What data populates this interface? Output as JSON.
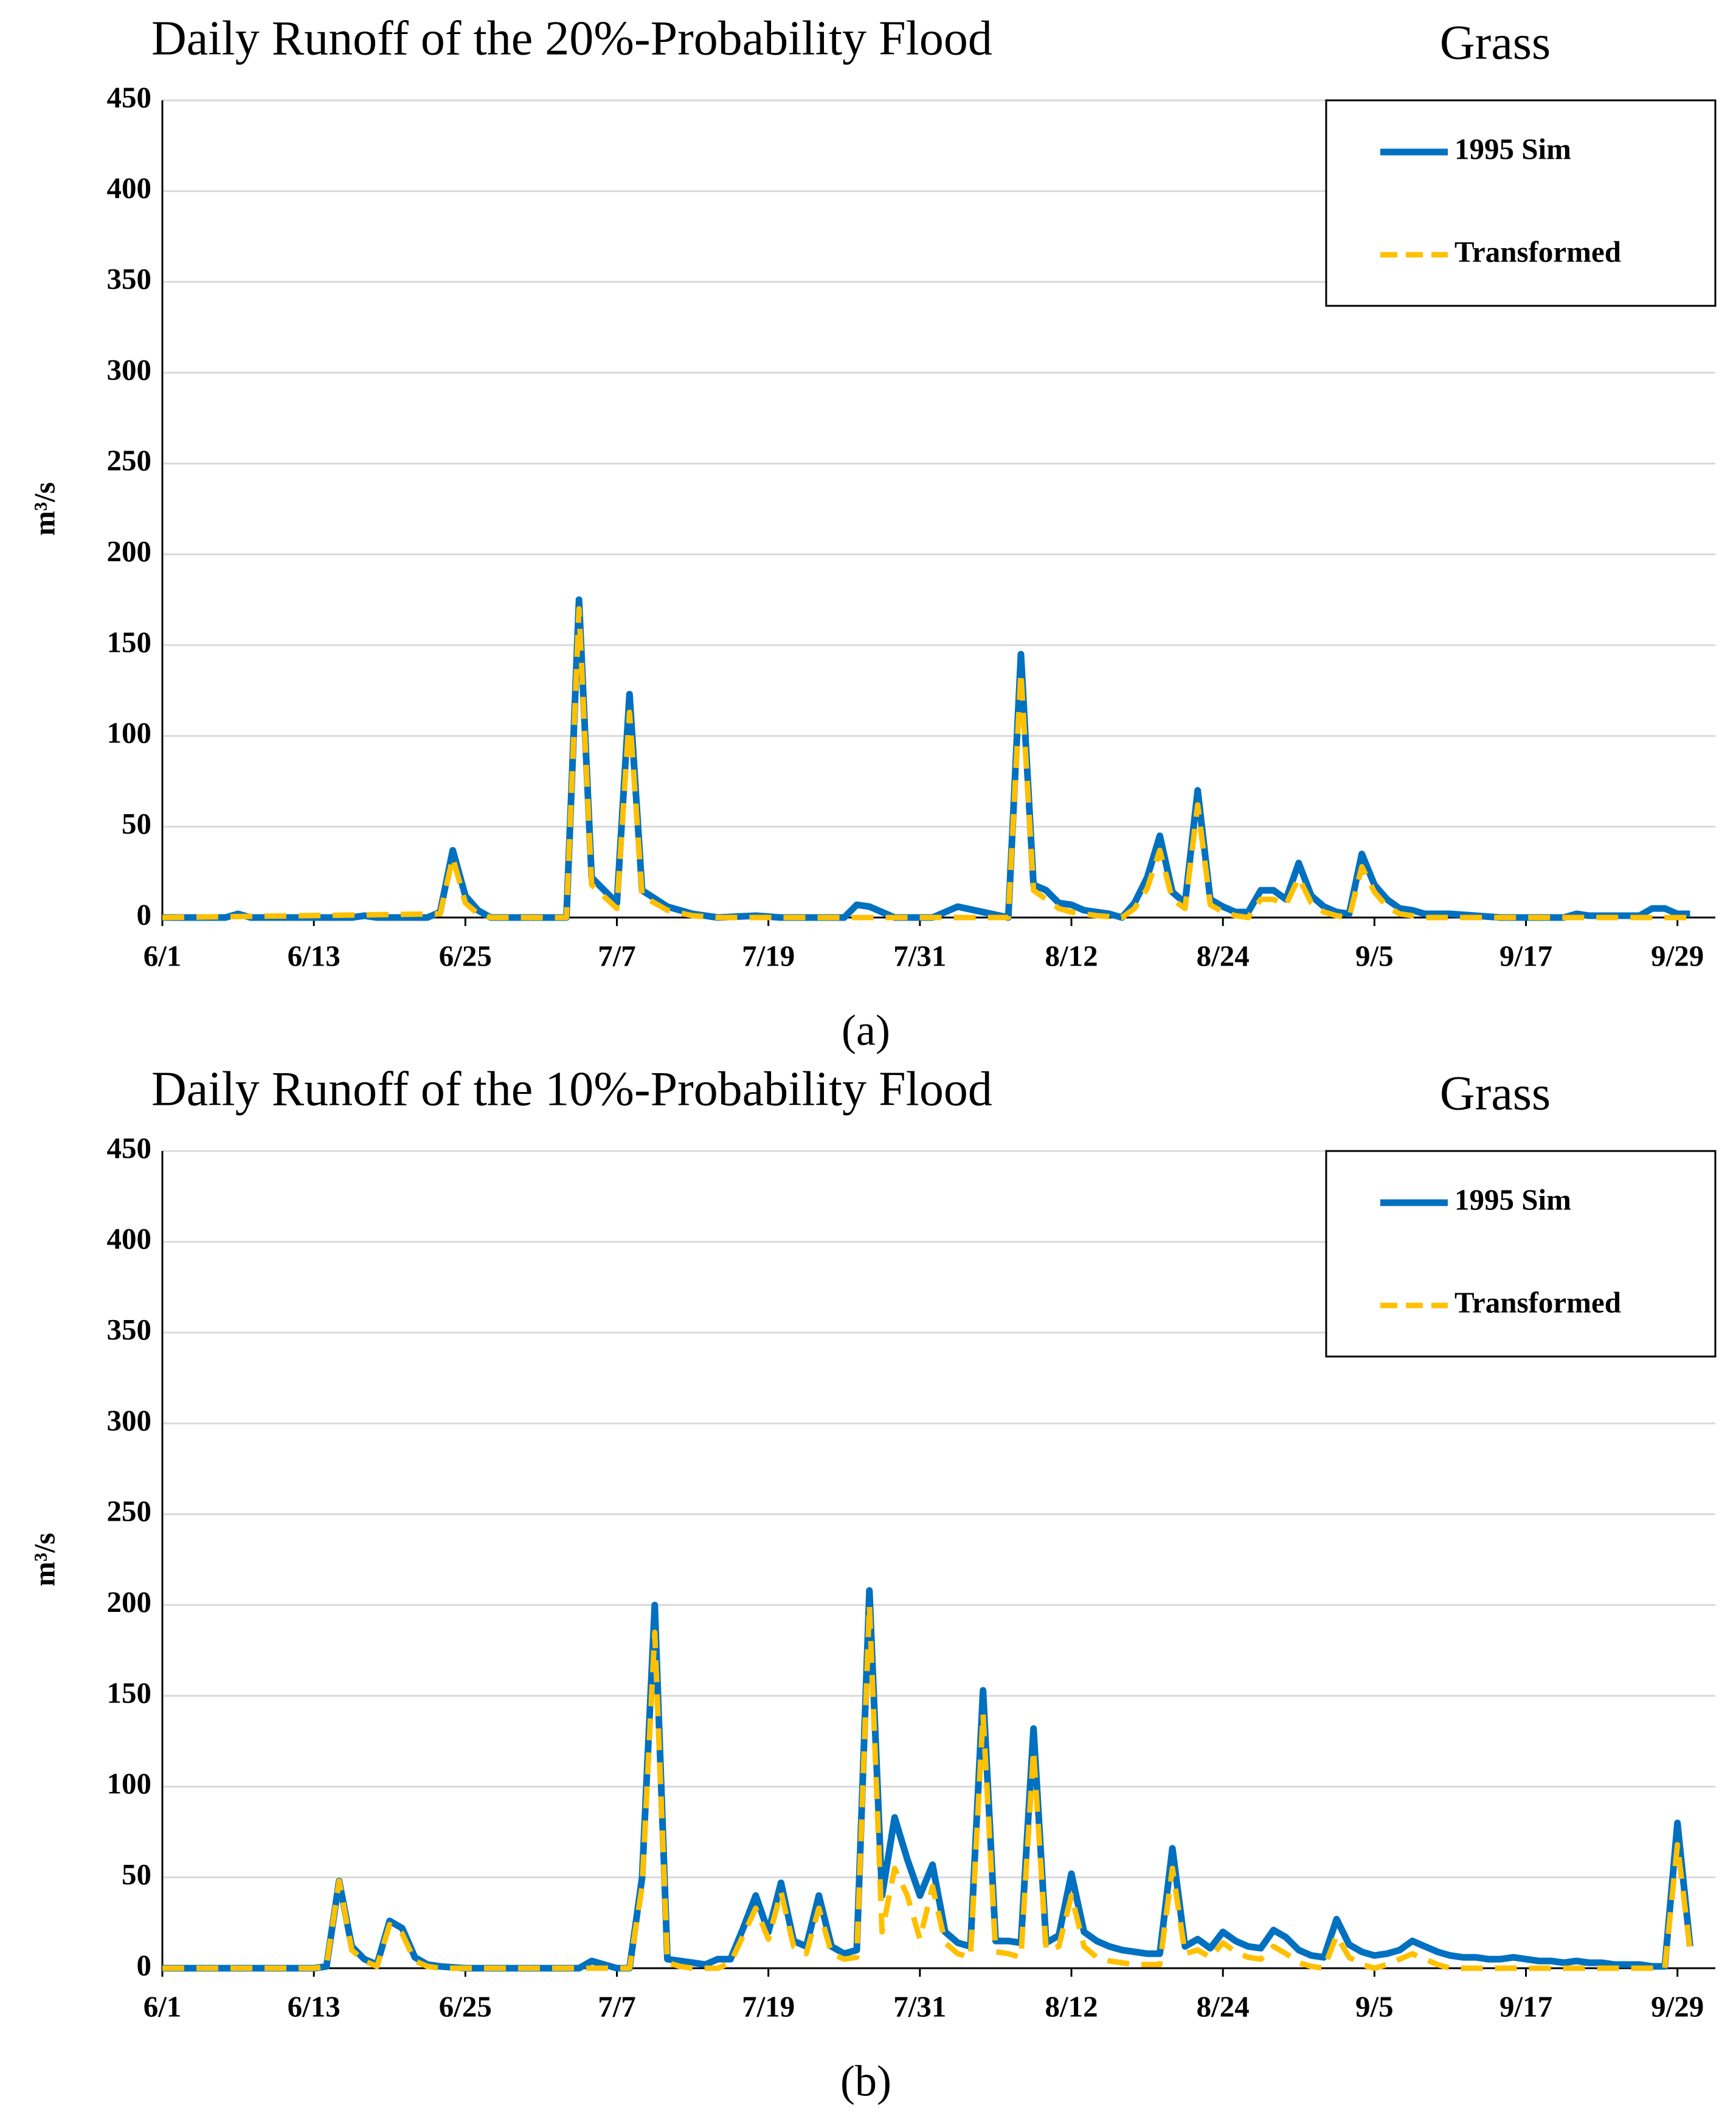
{
  "chart_data": [
    {
      "type": "line",
      "title": "Daily Runoff of the 20%-Probability  Flood",
      "annotation": "Grass",
      "ylabel": "m³/s",
      "caption": "(a)",
      "xlim": [
        0,
        123
      ],
      "ylim": [
        0,
        450
      ],
      "yticks": [
        0,
        50,
        100,
        150,
        200,
        250,
        300,
        350,
        400,
        450
      ],
      "xticks": [
        {
          "value": 0,
          "label": "6/1"
        },
        {
          "value": 12,
          "label": "6/13"
        },
        {
          "value": 24,
          "label": "6/25"
        },
        {
          "value": 36,
          "label": "7/7"
        },
        {
          "value": 48,
          "label": "7/19"
        },
        {
          "value": 60,
          "label": "7/31"
        },
        {
          "value": 72,
          "label": "8/12"
        },
        {
          "value": 84,
          "label": "8/24"
        },
        {
          "value": 96,
          "label": "9/5"
        },
        {
          "value": 108,
          "label": "9/17"
        },
        {
          "value": 120,
          "label": "9/29"
        }
      ],
      "grid": true,
      "legend": "upper right",
      "series": [
        {
          "name": "1995 Sim",
          "color": "#0070c0",
          "style": "solid",
          "x": [
            0,
            5,
            6,
            7,
            15,
            16,
            17,
            21,
            22,
            23,
            24,
            25,
            26,
            32,
            33,
            34,
            36,
            37,
            38,
            40,
            42,
            44,
            47,
            49,
            54,
            55,
            56,
            58,
            61,
            62,
            63,
            65,
            67,
            68,
            69,
            70,
            71,
            72,
            73,
            75,
            76,
            77,
            78,
            79,
            80,
            81,
            82,
            83,
            84,
            85,
            86,
            87,
            88,
            89,
            90,
            91,
            92,
            93,
            94,
            95,
            96,
            97,
            98,
            99,
            100,
            102,
            104,
            106,
            111,
            112,
            113,
            117,
            118,
            119,
            120,
            121
          ],
          "values": [
            0,
            0,
            2,
            0,
            0,
            1,
            0,
            0,
            3,
            37,
            12,
            4,
            0,
            0,
            175,
            22,
            8,
            123,
            15,
            6,
            2,
            0,
            1,
            0,
            0,
            7,
            6,
            0,
            0,
            3,
            6,
            3,
            0,
            145,
            18,
            15,
            8,
            7,
            4,
            2,
            0,
            8,
            22,
            45,
            14,
            8,
            70,
            10,
            6,
            3,
            3,
            15,
            15,
            10,
            30,
            12,
            6,
            3,
            2,
            35,
            18,
            10,
            5,
            4,
            2,
            2,
            1,
            0,
            0,
            2,
            1,
            1,
            5,
            5,
            2,
            2
          ]
        },
        {
          "name": "Transformed",
          "color": "#ffc000",
          "style": "dashed",
          "x": [
            0,
            22,
            23,
            24,
            25,
            26,
            32,
            33,
            34,
            36,
            37,
            38,
            40,
            42,
            44,
            67,
            68,
            69,
            70,
            71,
            72,
            74,
            76,
            77,
            78,
            79,
            80,
            81,
            82,
            83,
            84,
            85,
            86,
            87,
            88,
            89,
            90,
            91,
            92,
            93,
            94,
            95,
            96,
            97,
            98,
            100,
            121
          ],
          "values": [
            0,
            2,
            33,
            8,
            2,
            0,
            0,
            170,
            18,
            5,
            113,
            12,
            4,
            1,
            0,
            0,
            135,
            15,
            10,
            5,
            3,
            1,
            0,
            5,
            16,
            37,
            10,
            5,
            62,
            7,
            3,
            1,
            0,
            10,
            10,
            7,
            22,
            8,
            3,
            1,
            0,
            28,
            14,
            6,
            2,
            0,
            0
          ]
        }
      ]
    },
    {
      "type": "line",
      "title": "Daily Runoff of the 10%-Probability  Flood",
      "annotation": "Grass",
      "ylabel": "m³/s",
      "caption": "(b)",
      "xlim": [
        0,
        123
      ],
      "ylim": [
        0,
        450
      ],
      "yticks": [
        0,
        50,
        100,
        150,
        200,
        250,
        300,
        350,
        400,
        450
      ],
      "xticks": [
        {
          "value": 0,
          "label": "6/1"
        },
        {
          "value": 12,
          "label": "6/13"
        },
        {
          "value": 24,
          "label": "6/25"
        },
        {
          "value": 36,
          "label": "7/7"
        },
        {
          "value": 48,
          "label": "7/19"
        },
        {
          "value": 60,
          "label": "7/31"
        },
        {
          "value": 72,
          "label": "8/12"
        },
        {
          "value": 84,
          "label": "8/24"
        },
        {
          "value": 96,
          "label": "9/5"
        },
        {
          "value": 108,
          "label": "9/17"
        },
        {
          "value": 120,
          "label": "9/29"
        }
      ],
      "grid": true,
      "legend": "upper right",
      "series": [
        {
          "name": "1995 Sim",
          "color": "#0070c0",
          "style": "solid",
          "x": [
            0,
            12,
            13,
            14,
            15,
            16,
            17,
            18,
            19,
            20,
            21,
            22,
            24,
            33,
            34,
            35,
            36,
            37,
            38,
            39,
            40,
            41,
            42,
            43,
            44,
            45,
            46,
            47,
            48,
            49,
            50,
            51,
            52,
            53,
            54,
            55,
            56,
            57,
            58,
            59,
            60,
            61,
            62,
            63,
            64,
            65,
            66,
            67,
            68,
            69,
            70,
            71,
            72,
            73,
            74,
            75,
            76,
            77,
            78,
            79,
            80,
            81,
            82,
            83,
            84,
            85,
            86,
            87,
            88,
            89,
            90,
            91,
            92,
            93,
            94,
            95,
            96,
            97,
            98,
            99,
            100,
            101,
            102,
            103,
            104,
            105,
            106,
            107,
            108,
            109,
            110,
            111,
            112,
            113,
            114,
            115,
            116,
            117,
            118,
            119,
            120,
            121
          ],
          "values": [
            0,
            0,
            1,
            48,
            12,
            5,
            2,
            26,
            22,
            6,
            2,
            1,
            0,
            0,
            4,
            2,
            0,
            0,
            50,
            200,
            5,
            4,
            3,
            2,
            5,
            5,
            22,
            40,
            20,
            47,
            15,
            12,
            40,
            12,
            8,
            10,
            208,
            40,
            83,
            60,
            40,
            57,
            20,
            14,
            12,
            153,
            15,
            15,
            14,
            132,
            14,
            18,
            52,
            20,
            15,
            12,
            10,
            9,
            8,
            8,
            66,
            12,
            16,
            11,
            20,
            15,
            12,
            11,
            21,
            17,
            10,
            7,
            6,
            27,
            13,
            9,
            7,
            8,
            10,
            15,
            12,
            9,
            7,
            6,
            6,
            5,
            5,
            6,
            5,
            4,
            4,
            3,
            4,
            3,
            3,
            2,
            2,
            2,
            1,
            1,
            80,
            12
          ]
        },
        {
          "name": "Transformed",
          "color": "#ffc000",
          "style": "dashed",
          "x": [
            0,
            12,
            13,
            14,
            15,
            16,
            17,
            18,
            19,
            20,
            21,
            22,
            37,
            38,
            39,
            40,
            41,
            42,
            43,
            44,
            45,
            46,
            47,
            48,
            49,
            50,
            51,
            52,
            53,
            54,
            55,
            56,
            57,
            58,
            59,
            60,
            61,
            62,
            63,
            64,
            65,
            66,
            67,
            68,
            69,
            70,
            71,
            72,
            73,
            74,
            75,
            76,
            77,
            78,
            79,
            80,
            81,
            82,
            83,
            84,
            85,
            86,
            87,
            88,
            89,
            90,
            91,
            92,
            93,
            94,
            95,
            96,
            97,
            98,
            99,
            100,
            101,
            102,
            119,
            120,
            121
          ],
          "values": [
            0,
            0,
            1,
            48,
            10,
            4,
            1,
            24,
            19,
            4,
            1,
            0,
            0,
            45,
            185,
            3,
            1,
            0,
            0,
            0,
            3,
            18,
            33,
            16,
            42,
            12,
            8,
            33,
            8,
            5,
            6,
            200,
            20,
            55,
            40,
            16,
            45,
            14,
            8,
            6,
            140,
            9,
            8,
            6,
            120,
            10,
            12,
            40,
            12,
            6,
            4,
            3,
            2,
            2,
            2,
            55,
            8,
            10,
            6,
            14,
            9,
            6,
            5,
            12,
            8,
            3,
            1,
            0,
            18,
            6,
            2,
            0,
            2,
            5,
            8,
            5,
            2,
            0,
            0,
            68,
            10
          ]
        }
      ]
    }
  ]
}
